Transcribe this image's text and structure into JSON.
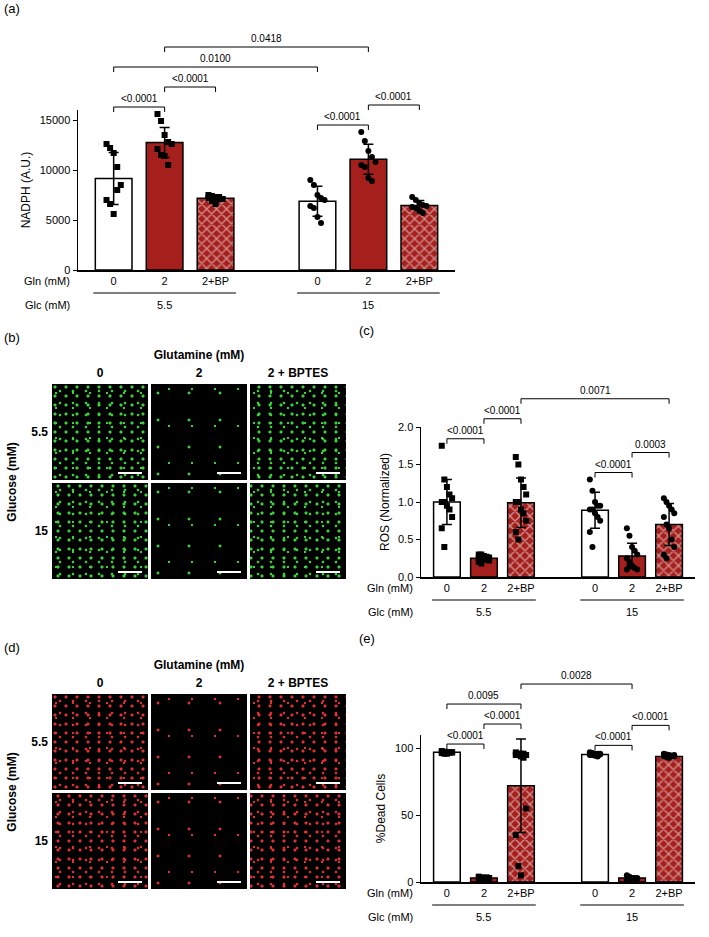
{
  "chart_data": [
    {
      "type": "bar",
      "title": "(a)",
      "y_label": "NADPH (A.U.)",
      "category_label": "Gln (mM)",
      "group_label": "Glc (mM)",
      "categories": [
        "0",
        "2",
        "2+BP"
      ],
      "ylim": [
        0,
        16000
      ],
      "yticks": [
        0,
        5000,
        10000,
        15000
      ],
      "series": [
        {
          "name": "5.5",
          "marker": "square",
          "colors": [
            "#ffffff",
            "#a51f1c",
            "#a51f1c"
          ],
          "values": [
            9150,
            12750,
            7170
          ],
          "errors": [
            2600,
            1500,
            350
          ],
          "points": [
            [
              12600,
              12200,
              11700,
              10300,
              8500,
              7000,
              6600,
              5600,
              8000
            ],
            [
              15600,
              14900,
              13500,
              12800,
              12600,
              12100,
              11500,
              11400,
              10500
            ],
            [
              7500,
              7400,
              7300,
              7200,
              7100,
              7200,
              6900,
              6600,
              7300
            ]
          ]
        },
        {
          "name": "15",
          "marker": "circle",
          "colors": [
            "#ffffff",
            "#a51f1c",
            "#a51f1c"
          ],
          "values": [
            6870,
            11070,
            6440
          ],
          "errors": [
            1500,
            1500,
            500
          ],
          "points": [
            [
              9000,
              8500,
              7500,
              7200,
              7000,
              6400,
              6200,
              5300,
              4700
            ],
            [
              13800,
              12900,
              11900,
              11300,
              10800,
              10500,
              10300,
              9200,
              8900
            ],
            [
              7300,
              7000,
              6700,
              6500,
              6400,
              6300,
              6200,
              5900,
              5700
            ]
          ]
        }
      ],
      "comparisons": [
        {
          "from": [
            "5.5",
            "0"
          ],
          "to": [
            "5.5",
            "2"
          ],
          "label": "<0.0001"
        },
        {
          "from": [
            "5.5",
            "2"
          ],
          "to": [
            "5.5",
            "2+BP"
          ],
          "label": "<0.0001"
        },
        {
          "from": [
            "15",
            "0"
          ],
          "to": [
            "15",
            "2"
          ],
          "label": "<0.0001"
        },
        {
          "from": [
            "15",
            "2"
          ],
          "to": [
            "15",
            "2+BP"
          ],
          "label": "<0.0001"
        },
        {
          "from": [
            "5.5",
            "0"
          ],
          "to": [
            "15",
            "0"
          ],
          "label": "0.0100"
        },
        {
          "from": [
            "5.5",
            "2"
          ],
          "to": [
            "15",
            "2"
          ],
          "label": "0.0418"
        }
      ]
    },
    {
      "type": "bar",
      "title": "(c)",
      "y_label": "ROS (Normalized)",
      "category_label": "Gln (mM)",
      "group_label": "Glc (mM)",
      "categories": [
        "0",
        "2",
        "2+BP"
      ],
      "ylim": [
        0,
        2
      ],
      "yticks": [
        {
          "value": 0,
          "label": "0.0"
        },
        0.5,
        {
          "value": 1,
          "label": "1.0"
        },
        1.5,
        {
          "value": 2,
          "label": "2.0"
        }
      ],
      "series": [
        {
          "name": "5.5",
          "marker": "square",
          "colors": [
            "#ffffff",
            "#a51f1c",
            "#a51f1c"
          ],
          "values": [
            1.0,
            0.25,
            0.99
          ],
          "errors": [
            0.3,
            0.04,
            0.33
          ],
          "points": [
            [
              1.75,
              1.3,
              1.2,
              1.1,
              1.05,
              1.0,
              1.0,
              0.95,
              0.9,
              0.8,
              0.65,
              0.4
            ],
            [
              0.3,
              0.3,
              0.28,
              0.27,
              0.26,
              0.25,
              0.25,
              0.24,
              0.23,
              0.22,
              0.2,
              0.18
            ],
            [
              1.6,
              1.5,
              1.3,
              1.2,
              1.1,
              1.0,
              1.0,
              0.9,
              0.85,
              0.75,
              0.6,
              0.5
            ]
          ]
        },
        {
          "name": "15",
          "marker": "circle",
          "colors": [
            "#ffffff",
            "#a51f1c",
            "#a51f1c"
          ],
          "values": [
            0.89,
            0.28,
            0.7
          ],
          "errors": [
            0.24,
            0.17,
            0.28
          ],
          "points": [
            [
              1.3,
              1.15,
              1.0,
              0.95,
              0.95,
              0.9,
              0.9,
              0.85,
              0.8,
              0.75,
              0.6,
              0.4
            ],
            [
              0.65,
              0.55,
              0.4,
              0.35,
              0.3,
              0.25,
              0.2,
              0.15,
              0.12,
              0.1,
              0.1,
              0.15
            ],
            [
              1.05,
              1.0,
              0.95,
              0.9,
              0.85,
              0.8,
              0.7,
              0.65,
              0.5,
              0.4,
              0.3,
              0.25
            ]
          ]
        }
      ],
      "comparisons": [
        {
          "from": [
            "5.5",
            "0"
          ],
          "to": [
            "5.5",
            "2"
          ],
          "label": "<0.0001"
        },
        {
          "from": [
            "5.5",
            "2"
          ],
          "to": [
            "5.5",
            "2+BP"
          ],
          "label": "<0.0001"
        },
        {
          "from": [
            "15",
            "0"
          ],
          "to": [
            "15",
            "2"
          ],
          "label": "<0.0001"
        },
        {
          "from": [
            "15",
            "2"
          ],
          "to": [
            "15",
            "2+BP"
          ],
          "label": "0.0003"
        },
        {
          "from": [
            "5.5",
            "2+BP"
          ],
          "to": [
            "15",
            "2+BP"
          ],
          "label": "0.0071"
        }
      ]
    },
    {
      "type": "bar",
      "title": "(e)",
      "y_label": "%Dead Cells",
      "category_label": "Gln (mM)",
      "group_label": "Glc (mM)",
      "categories": [
        "0",
        "2",
        "2+BP"
      ],
      "ylim": [
        0,
        110
      ],
      "yticks": [
        0,
        50,
        100
      ],
      "series": [
        {
          "name": "5.5",
          "marker": "square",
          "colors": [
            "#ffffff",
            "#a51f1c",
            "#a51f1c"
          ],
          "values": [
            97,
            3,
            72
          ],
          "errors": [
            1,
            0.8,
            35
          ],
          "points": [
            [
              98,
              97.5,
              97,
              97,
              97,
              96.5,
              96,
              96,
              97,
              97
            ],
            [
              4,
              3.5,
              3,
              3,
              3,
              2.5,
              2.5,
              3,
              3.5,
              2
            ],
            [
              97,
              96,
              96,
              96,
              95,
              95,
              95,
              94,
              93,
              55,
              35,
              12,
              5
            ]
          ]
        },
        {
          "name": "15",
          "marker": "circle",
          "colors": [
            "#ffffff",
            "#a51f1c",
            "#a51f1c"
          ],
          "values": [
            95.5,
            3,
            94
          ],
          "errors": [
            1.3,
            1,
            1
          ],
          "points": [
            [
              97,
              96.5,
              96,
              96,
              95.5,
              95,
              95,
              94.5,
              94,
              96
            ],
            [
              5,
              4,
              3,
              3,
              2.5,
              2,
              2,
              3,
              2.5,
              3
            ],
            [
              96,
              95.5,
              95,
              94.5,
              94,
              94,
              93.5,
              93,
              94.5,
              95
            ]
          ]
        }
      ],
      "comparisons": [
        {
          "from": [
            "5.5",
            "0"
          ],
          "to": [
            "5.5",
            "2"
          ],
          "label": "<0.0001"
        },
        {
          "from": [
            "5.5",
            "2"
          ],
          "to": [
            "5.5",
            "2+BP"
          ],
          "label": "<0.0001"
        },
        {
          "from": [
            "15",
            "0"
          ],
          "to": [
            "15",
            "2"
          ],
          "label": "<0.0001"
        },
        {
          "from": [
            "15",
            "2"
          ],
          "to": [
            "15",
            "2+BP"
          ],
          "label": "<0.0001"
        },
        {
          "from": [
            "5.5",
            "0"
          ],
          "to": [
            "5.5",
            "2+BP"
          ],
          "label": "0.0095"
        },
        {
          "from": [
            "5.5",
            "2+BP"
          ],
          "to": [
            "15",
            "2"
          ],
          "label": "0.0028"
        }
      ]
    }
  ],
  "image_panels": [
    {
      "title": "(b)",
      "column_header": "Glutamine (mM)",
      "columns": [
        "0",
        "2",
        "2 + BPTES"
      ],
      "row_header": "Glucose (mM)",
      "rows": [
        "5.5",
        "15"
      ],
      "color": "#3ad13a"
    },
    {
      "title": "(d)",
      "column_header": "Glutamine (mM)",
      "columns": [
        "0",
        "2",
        "2 + BPTES"
      ],
      "row_header": "Glucose (mM)",
      "rows": [
        "5.5",
        "15"
      ],
      "color": "#e03030"
    }
  ]
}
